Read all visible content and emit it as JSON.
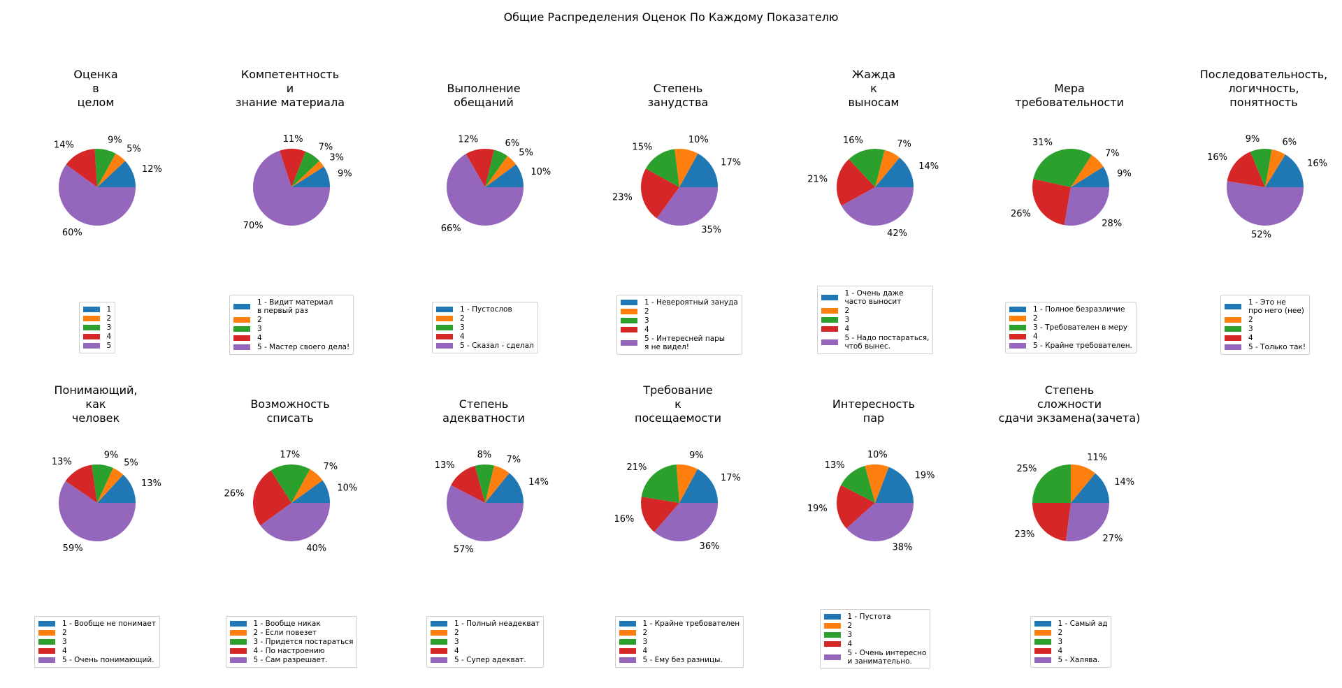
{
  "title": "Общие Распределения Оценок По Каждому Показателю",
  "colors": [
    "#1f77b4",
    "#ff7f0e",
    "#2ca02c",
    "#d62728",
    "#9467bd"
  ],
  "chart_data": [
    {
      "type": "pie",
      "title": "Оценка\nв\nцелом",
      "values": [
        12,
        5,
        9,
        14,
        60
      ],
      "labels": [
        "12%",
        "5%",
        "9%",
        "14%",
        "60%"
      ],
      "legend": [
        "1",
        "2",
        "3",
        "4",
        "5"
      ]
    },
    {
      "type": "pie",
      "title": "Компетентность\nи\nзнание материала",
      "values": [
        9,
        3,
        7,
        11,
        70
      ],
      "labels": [
        "9%",
        "3%",
        "7%",
        "11%",
        "70%"
      ],
      "legend": [
        "1 - Видит материал\nв первый раз",
        "2",
        "3",
        "4",
        "5 - Мастер своего дела!"
      ]
    },
    {
      "type": "pie",
      "title": "Выполнение\nобещаний",
      "values": [
        10,
        5,
        6,
        12,
        66
      ],
      "labels": [
        "10%",
        "5%",
        "6%",
        "12%",
        "66%"
      ],
      "legend": [
        "1 - Пустослов",
        "2",
        "3",
        "4",
        "5 - Сказал - сделал"
      ]
    },
    {
      "type": "pie",
      "title": "Степень\nзанудства",
      "values": [
        17,
        10,
        15,
        23,
        35
      ],
      "labels": [
        "17%",
        "10%",
        "15%",
        "23%",
        "35%"
      ],
      "legend": [
        "1 - Невероятный зануда",
        "2",
        "3",
        "4",
        "5 - Интересней пары\nя не видел!"
      ]
    },
    {
      "type": "pie",
      "title": "Жажда\nк\nвыносам",
      "values": [
        14,
        7,
        16,
        21,
        42
      ],
      "labels": [
        "14%",
        "7%",
        "16%",
        "21%",
        "42%"
      ],
      "legend": [
        "1 - Очень даже\nчасто выносит",
        "2",
        "3",
        "4",
        "5 - Надо постараться,\nчтоб вынес."
      ]
    },
    {
      "type": "pie",
      "title": "Мера\nтребовательности",
      "values": [
        9,
        7,
        31,
        26,
        28
      ],
      "labels": [
        "9%",
        "7%",
        "31%",
        "26%",
        "28%"
      ],
      "legend": [
        "1 - Полное безразличие",
        "2",
        "3 - Требователен в меру",
        "4",
        "5 - Крайне требователен."
      ]
    },
    {
      "type": "pie",
      "title": "Последовательность,\nлогичность,\nпонятность",
      "values": [
        16,
        6,
        9,
        16,
        52
      ],
      "labels": [
        "16%",
        "6%",
        "9%",
        "16%",
        "52%"
      ],
      "legend": [
        "1 - Это не\nпро него (нее)",
        "2",
        "3",
        "4",
        "5 - Только так!"
      ]
    },
    {
      "type": "pie",
      "title": "Понимающий,\nкак\nчеловек",
      "values": [
        13,
        5,
        9,
        13,
        59
      ],
      "labels": [
        "13%",
        "5%",
        "9%",
        "13%",
        "59%"
      ],
      "legend": [
        "1 - Вообще не понимает",
        "2",
        "3",
        "4",
        "5 - Очень понимающий."
      ]
    },
    {
      "type": "pie",
      "title": "Возможность\nсписать",
      "values": [
        10,
        7,
        17,
        26,
        40
      ],
      "labels": [
        "10%",
        "7%",
        "17%",
        "26%",
        "40%"
      ],
      "legend": [
        "1 - Вообще никак",
        "2 - Если повезет",
        "3 - Придется постараться",
        "4 - По настроению",
        "5 - Сам разрешает."
      ]
    },
    {
      "type": "pie",
      "title": "Степень\nадекватности",
      "values": [
        14,
        7,
        8,
        13,
        57
      ],
      "labels": [
        "14%",
        "7%",
        "8%",
        "13%",
        "57%"
      ],
      "legend": [
        "1 - Полный неадекват",
        "2",
        "3",
        "4",
        "5 - Супер адекват."
      ]
    },
    {
      "type": "pie",
      "title": "Требование\nк\nпосещаемости",
      "values": [
        17,
        9,
        21,
        16,
        36
      ],
      "labels": [
        "17%",
        "9%",
        "21%",
        "16%",
        "36%"
      ],
      "legend": [
        "1 - Крайне требователен",
        "2",
        "3",
        "4",
        "5 - Ему без разницы."
      ]
    },
    {
      "type": "pie",
      "title": "Интересность\nпар",
      "values": [
        19,
        10,
        13,
        19,
        38
      ],
      "labels": [
        "19%",
        "10%",
        "13%",
        "19%",
        "38%"
      ],
      "legend": [
        "1 - Пустота",
        "2",
        "3",
        "4",
        "5 - Очень интересно\nи занимательно."
      ]
    },
    {
      "type": "pie",
      "title": "Степень\nсложности\nсдачи экзамена(зачета)",
      "values": [
        14,
        11,
        25,
        23,
        27
      ],
      "labels": [
        "14%",
        "11%",
        "25%",
        "23%",
        "27%"
      ],
      "legend": [
        "1 - Самый ад",
        "2",
        "3",
        "4",
        "5 - Халява."
      ]
    }
  ]
}
